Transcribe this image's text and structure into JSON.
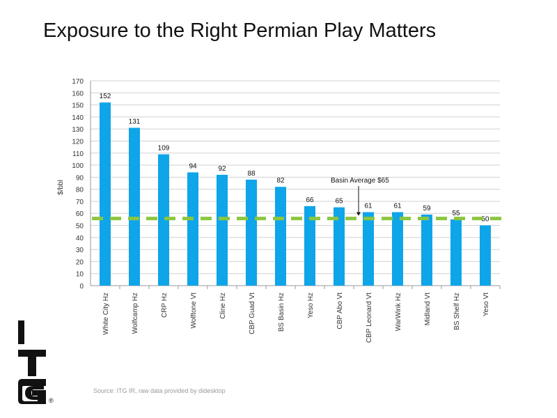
{
  "page": {
    "title": "Exposure to the Right Permian Play Matters",
    "source": "Source: ITG IR, raw data provided by didesktop"
  },
  "logo": {
    "letters": [
      "I",
      "T",
      "G"
    ],
    "registered": "®"
  },
  "colors": {
    "bar": "#0ea5e9",
    "average_line": "#8cc63f",
    "grid": "#d0d0d0",
    "axis_text": "#333333"
  },
  "chart_data": {
    "type": "bar",
    "title": "Exposure to the Right Permian Play Matters",
    "xlabel": "",
    "ylabel": "$/bbl",
    "ylim": [
      0,
      170
    ],
    "yticks": [
      0,
      10,
      20,
      30,
      40,
      50,
      60,
      70,
      80,
      90,
      100,
      110,
      120,
      130,
      140,
      150,
      160,
      170
    ],
    "grid": true,
    "categories": [
      "White City Hz",
      "Wolfcamp Hz",
      "CRP Hz",
      "Wolftone Vt",
      "Cline Hz",
      "CBP Guad Vt",
      "BS Basin Hz",
      "Yeso Hz",
      "CBP Abo Vt",
      "CBP Leonard Vt",
      "WarWink Hz",
      "Midland Vt",
      "BS Shelf Hz",
      "Yeso Vt"
    ],
    "values": [
      152,
      131,
      109,
      94,
      92,
      88,
      82,
      66,
      65,
      61,
      61,
      59,
      55,
      50
    ],
    "data_labels": [
      "152",
      "131",
      "109",
      "94",
      "92",
      "88",
      "82",
      "66",
      "65",
      "61",
      "61",
      "59",
      "55",
      "50"
    ],
    "reference_line": {
      "value": 65,
      "label": "Basin Average $65",
      "style": "dashed"
    }
  }
}
